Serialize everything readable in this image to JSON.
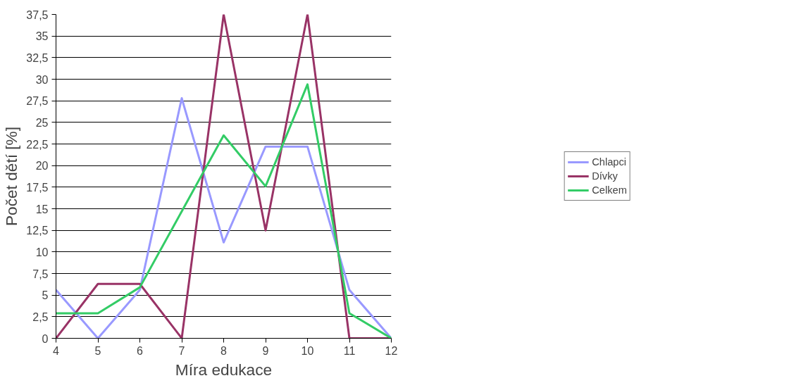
{
  "chart_data": {
    "type": "line",
    "xlabel": "Míra edukace",
    "ylabel": "Počet dětí [%]",
    "x": [
      4,
      5,
      6,
      7,
      8,
      9,
      10,
      11,
      12
    ],
    "series": [
      {
        "name": "Chlapci",
        "color": "#9999ff",
        "values": [
          5.6,
          0,
          5.6,
          27.8,
          11.1,
          22.2,
          22.2,
          5.6,
          0
        ]
      },
      {
        "name": "Dívky",
        "color": "#993366",
        "values": [
          0,
          6.3,
          6.3,
          0,
          37.5,
          12.5,
          37.5,
          0,
          0
        ]
      },
      {
        "name": "Celkem",
        "color": "#33cc66",
        "values": [
          2.9,
          2.9,
          5.9,
          14.7,
          23.5,
          17.6,
          29.4,
          2.9,
          0
        ]
      }
    ],
    "xlim": [
      4,
      12
    ],
    "xticks": [
      4,
      5,
      6,
      7,
      8,
      9,
      10,
      11,
      12
    ],
    "ylim": [
      0,
      37.5
    ],
    "yticks": [
      0,
      {
        "value": 2.5,
        "label": "2,5"
      },
      5,
      {
        "value": 7.5,
        "label": "7,5"
      },
      10,
      {
        "value": 12.5,
        "label": "12,5"
      },
      15,
      {
        "value": 17.5,
        "label": "17,5"
      },
      20,
      {
        "value": 22.5,
        "label": "22,5"
      },
      25,
      {
        "value": 27.5,
        "label": "27,5"
      },
      30,
      {
        "value": 32.5,
        "label": "32,5"
      },
      35,
      {
        "value": 37.5,
        "label": "37,5"
      }
    ],
    "grid": "y",
    "legend": "right",
    "marker": "none",
    "line_style": "solid"
  }
}
